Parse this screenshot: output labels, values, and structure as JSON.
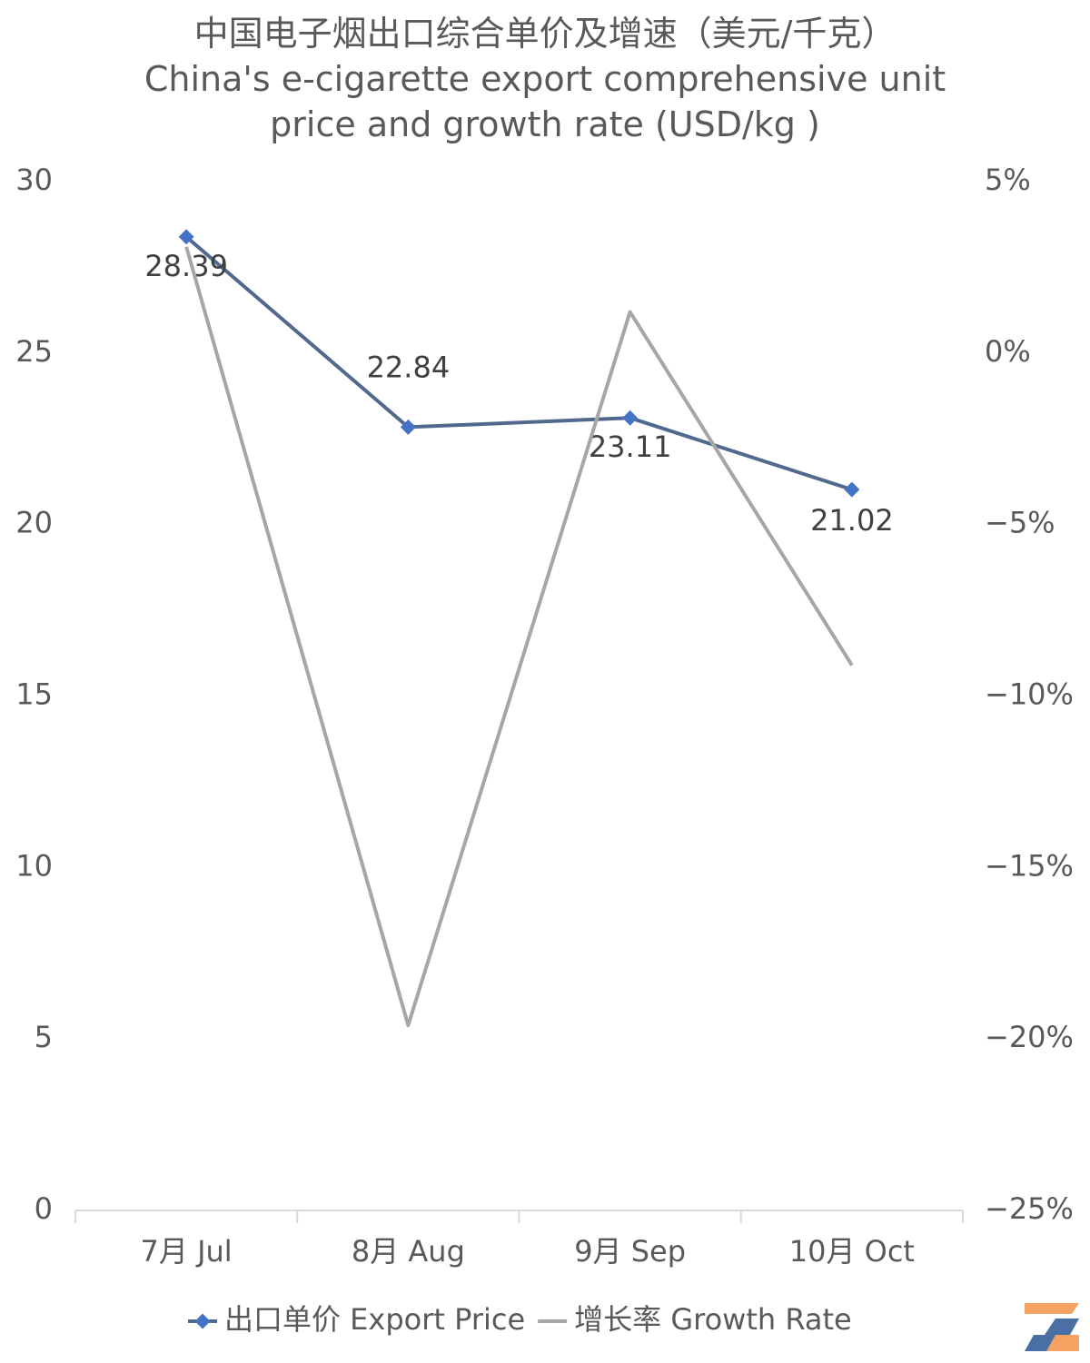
{
  "chart_data": {
    "type": "line",
    "title": "中国电子烟出口综合单价及增速（美元/千克）",
    "subtitle": "China's e-cigarette export comprehensive unit price and growth rate (USD/kg )",
    "categories": [
      "7月 Jul",
      "8月 Aug",
      "9月 Sep",
      "10月 Oct"
    ],
    "series": [
      {
        "name": "出口单价 Export Price",
        "color": "#52698f",
        "marker_color": "#4472c4",
        "values": [
          28.39,
          22.84,
          23.11,
          21.02
        ]
      },
      {
        "name": "增长率 Growth Rate",
        "color": "#a6a6a6",
        "axis": "y2",
        "values": [
          3.1,
          -19.6,
          1.2,
          -9.1
        ]
      }
    ],
    "ylim": [
      0,
      30
    ],
    "yticks": [
      0,
      5,
      10,
      15,
      20,
      25,
      30
    ],
    "y2lim": [
      -25,
      5
    ],
    "y2ticks": [
      {
        "value": -25,
        "label": "−25%"
      },
      {
        "value": -20,
        "label": "−20%"
      },
      {
        "value": -15,
        "label": "−15%"
      },
      {
        "value": -10,
        "label": "−10%"
      },
      {
        "value": -5,
        "label": "−5%"
      },
      {
        "value": 0,
        "label": "0%"
      },
      {
        "value": 5,
        "label": "5%"
      }
    ],
    "grid": false,
    "legend": "bottom"
  }
}
